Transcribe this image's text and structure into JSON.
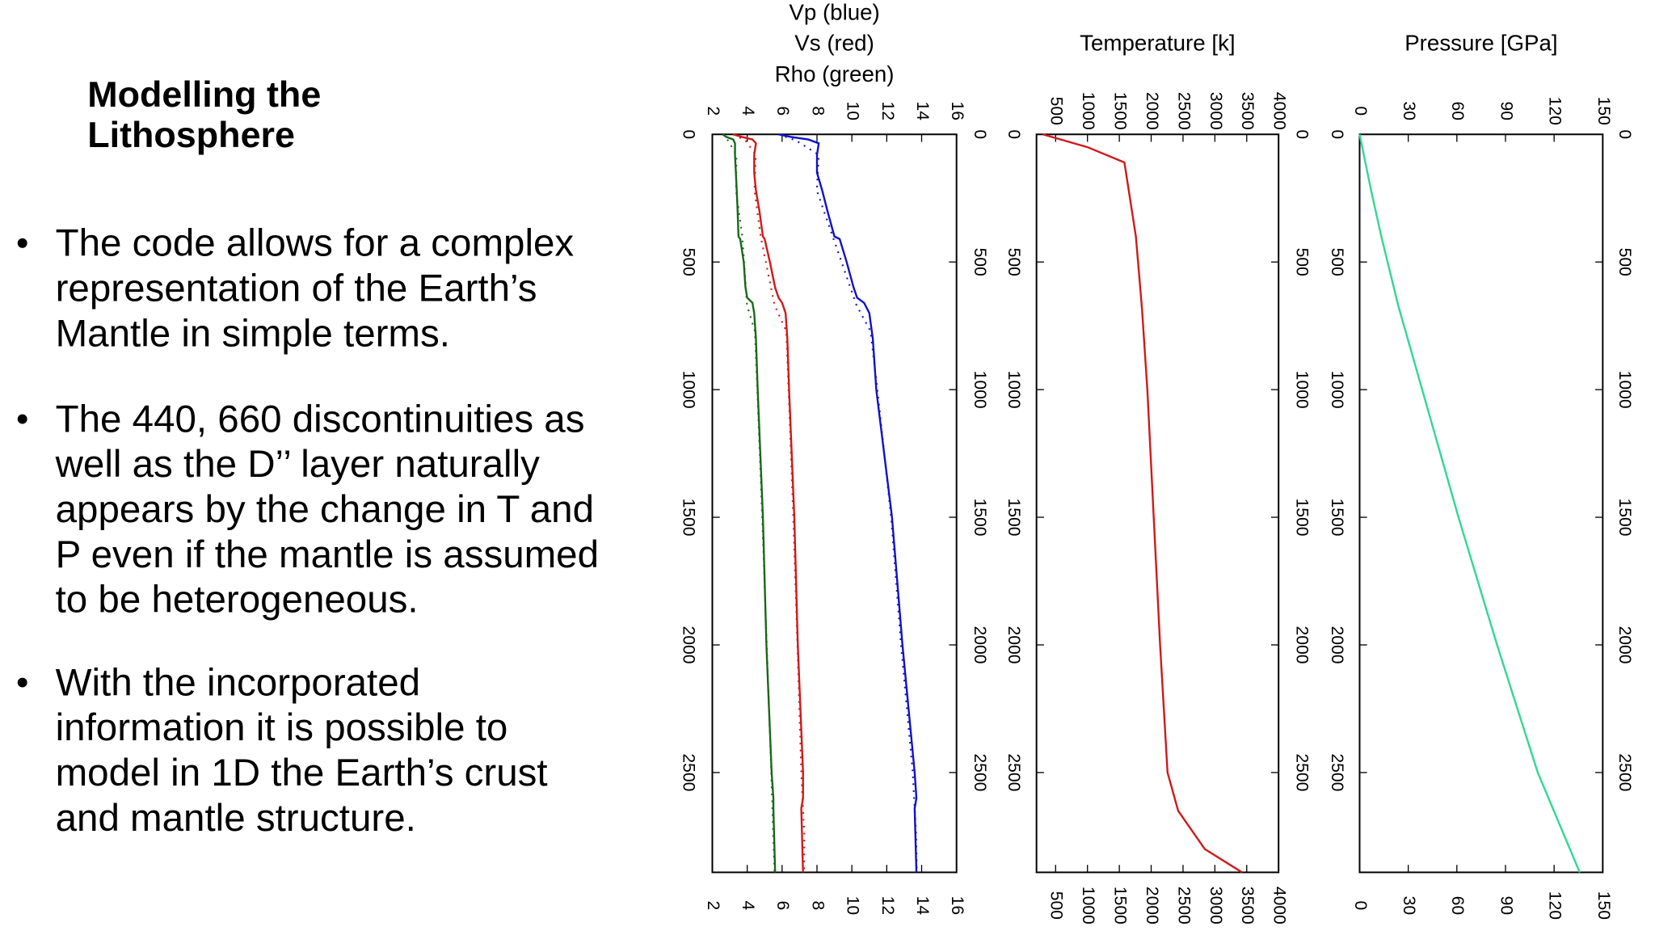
{
  "slide": {
    "title": [
      "Modelling the",
      "Lithosphere"
    ],
    "bullets": [
      [
        "The code allows for a complex",
        "representation of the Earth’s",
        "Mantle in simple terms."
      ],
      [
        "The 440, 660 discontinuities as",
        "well as the D’’ layer naturally",
        "appears by the change in T and",
        "P even if the mantle is assumed",
        "to be heterogeneous."
      ],
      [
        "With the incorporated",
        "information it is possible to",
        "model in 1D the Earth’s crust",
        "and mantle structure."
      ]
    ]
  },
  "chart_data": [
    {
      "type": "line",
      "orientation": "depth-down",
      "title": [
        "Vp (blue)",
        "Vs (red)",
        "Rho (green)"
      ],
      "xlim": [
        0,
        2891
      ],
      "xticks": [
        0,
        500,
        1000,
        1500,
        2000,
        2500
      ],
      "ylim": [
        2,
        16
      ],
      "yticks": [
        2,
        4,
        6,
        8,
        10,
        12,
        14,
        16
      ],
      "x": [
        0,
        10,
        20,
        35,
        80,
        150,
        220,
        300,
        400,
        410,
        500,
        600,
        640,
        660,
        700,
        800,
        1000,
        1500,
        2000,
        2500,
        2600,
        2640,
        2891
      ],
      "series": [
        {
          "color": "#1010c8",
          "style": "solid",
          "values": [
            5.8,
            6.5,
            7.5,
            8.1,
            8.0,
            8.0,
            8.3,
            8.6,
            9.0,
            9.3,
            9.7,
            10.1,
            10.3,
            10.7,
            11.0,
            11.2,
            11.4,
            12.3,
            12.9,
            13.6,
            13.7,
            13.6,
            13.7
          ]
        },
        {
          "color": "#d01818",
          "style": "solid",
          "values": [
            3.2,
            3.7,
            4.3,
            4.5,
            4.4,
            4.4,
            4.5,
            4.7,
            4.9,
            5.0,
            5.3,
            5.6,
            5.8,
            6.0,
            6.2,
            6.3,
            6.4,
            6.7,
            6.9,
            7.2,
            7.2,
            7.1,
            7.2
          ]
        },
        {
          "color": "#186818",
          "style": "solid",
          "values": [
            2.6,
            2.8,
            3.2,
            3.3,
            3.3,
            3.35,
            3.4,
            3.45,
            3.5,
            3.6,
            3.8,
            3.9,
            4.0,
            4.3,
            4.4,
            4.5,
            4.6,
            4.9,
            5.1,
            5.4,
            5.5,
            5.5,
            5.6
          ]
        }
      ],
      "reference": {
        "x": [
          0,
          24,
          80,
          220,
          400,
          670,
          771,
          1000,
          1500,
          2000,
          2500,
          2741,
          2891
        ],
        "series": [
          {
            "color": "#1010c8",
            "style": "dotted",
            "values": [
              5.8,
              6.8,
              8.1,
              7.99,
              8.9,
              10.27,
              11.07,
              11.46,
              12.25,
              12.82,
              13.49,
              13.68,
              13.72
            ]
          },
          {
            "color": "#d01818",
            "style": "dotted",
            "values": [
              3.2,
              3.9,
              4.49,
              4.42,
              4.77,
              5.57,
              6.24,
              6.37,
              6.64,
              6.88,
              7.1,
              7.27,
              7.26
            ]
          },
          {
            "color": "#186818",
            "style": "dotted",
            "values": [
              2.6,
              2.9,
              3.38,
              3.36,
              3.72,
              3.99,
              4.44,
              4.58,
              4.86,
              5.12,
              5.38,
              5.49,
              5.57
            ]
          }
        ]
      }
    },
    {
      "type": "line",
      "orientation": "depth-down",
      "title": [
        "Temperature [k]"
      ],
      "xlim": [
        0,
        2891
      ],
      "xticks": [
        0,
        500,
        1000,
        1500,
        2000,
        2500
      ],
      "ylim": [
        200,
        4000
      ],
      "yticks": [
        500,
        1000,
        1500,
        2000,
        2500,
        3000,
        3500,
        4000
      ],
      "x": [
        0,
        50,
        110,
        400,
        680,
        1000,
        1500,
        2000,
        2500,
        2650,
        2800,
        2891
      ],
      "series": [
        {
          "color": "#d01818",
          "style": "solid",
          "values": [
            300,
            1000,
            1580,
            1760,
            1855,
            1940,
            2040,
            2140,
            2257,
            2424,
            2842,
            3427
          ]
        }
      ]
    },
    {
      "type": "line",
      "orientation": "depth-down",
      "title": [
        "Pressure [GPa]"
      ],
      "xlim": [
        0,
        2891
      ],
      "xticks": [
        0,
        500,
        1000,
        1500,
        2000,
        2500
      ],
      "ylim": [
        0,
        150
      ],
      "yticks": [
        0,
        30,
        60,
        90,
        120,
        150
      ],
      "x": [
        0,
        220,
        400,
        670,
        1000,
        1500,
        2000,
        2500,
        2891
      ],
      "series": [
        {
          "color": "#30d890",
          "style": "solid",
          "values": [
            0,
            7.1,
            13.4,
            23.8,
            38.6,
            61,
            84.8,
            109.9,
            135.8
          ]
        }
      ]
    }
  ]
}
